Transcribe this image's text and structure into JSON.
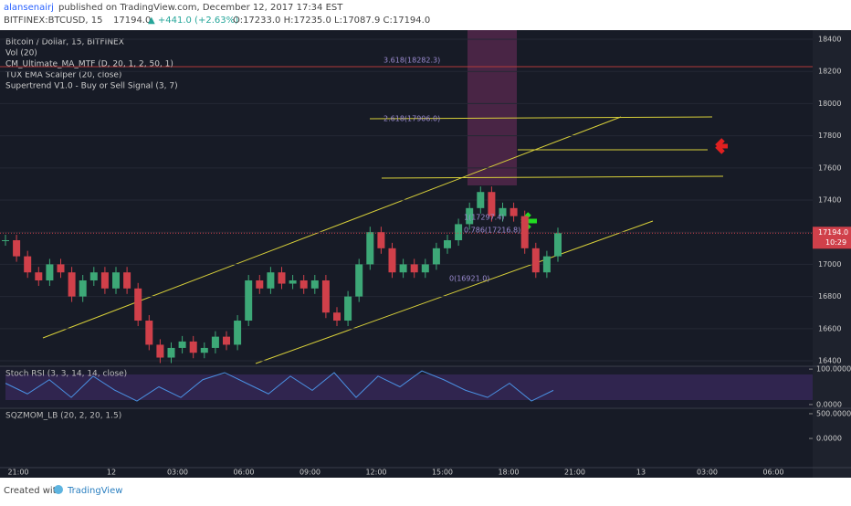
{
  "header": {
    "author": "alansenairj",
    "published": "published on TradingView.com, December 12, 2017 17:34 EST",
    "symbol": "BITFINEX:BTCUSD, 15",
    "last": "17194.0",
    "change": "▲ +441.0 (+2.63%)",
    "ohlc": "O:17233.0 H:17235.0 L:17087.9 C:17194.0"
  },
  "legend": [
    "Bitcoin / Dollar, 15, BITFINEX",
    "Vol (20)",
    "CM_Ultimate_MA_MTF (D, 20, 1, 2, 50, 1)",
    "TUX EMA Scalper (20, close)",
    "Supertrend V1.0 - Buy or Sell Signal (3, 7)"
  ],
  "fib_labels": [
    "3.618(18282.3)",
    "2.618(17906.0)",
    "1(17297.4)",
    "0.786(17216.8)",
    "0(16921.0)"
  ],
  "price_pane": {
    "ylim": [
      16366,
      18457
    ],
    "yticks": [
      16400,
      16600,
      16800,
      17000,
      17200,
      17400,
      17600,
      17800,
      18000,
      18200,
      18400
    ],
    "closes": [
      17150,
      17050,
      16950,
      16900,
      17000,
      16950,
      16800,
      16900,
      16950,
      16850,
      16950,
      16850,
      16650,
      16500,
      16420,
      16480,
      16520,
      16450,
      16480,
      16550,
      16500,
      16650,
      16900,
      16850,
      16950,
      16880,
      16900,
      16850,
      16900,
      16700,
      16650,
      16800,
      17000,
      17200,
      17100,
      16950,
      17000,
      16950,
      17000,
      17100,
      17150,
      17250,
      17350,
      17450,
      17300,
      17350,
      17300,
      17100,
      16950,
      17050,
      17194
    ],
    "last_price_label": "17194.0",
    "time_left": "10:29"
  },
  "stoch_pane": {
    "title": "Stoch RSI (3, 3, 14, 14, close)",
    "ylim": [
      -8,
      108
    ],
    "yticks": [
      {
        "value": 0,
        "label": "0.0000"
      },
      {
        "value": 100,
        "label": "100.0000"
      }
    ],
    "k": [
      60,
      30,
      70,
      20,
      80,
      40,
      10,
      50,
      20,
      70,
      90,
      60,
      30,
      80,
      40,
      90,
      20,
      80,
      50,
      95,
      70,
      40,
      20,
      60,
      10,
      40
    ]
  },
  "sqz_pane": {
    "title": "SQZMOM_LB (20, 2, 20, 1.5)",
    "ylim": [
      -590,
      610
    ],
    "yticks": [
      {
        "value": 0,
        "label": "0.0000"
      },
      {
        "value": 500,
        "label": "500.0000"
      }
    ]
  },
  "time_axis": [
    "21:00",
    "12",
    "03:00",
    "06:00",
    "09:00",
    "12:00",
    "15:00",
    "18:00",
    "21:00",
    "13",
    "03:00",
    "06:00"
  ],
  "footer": {
    "created": "Created with",
    "brand": "TradingView"
  }
}
